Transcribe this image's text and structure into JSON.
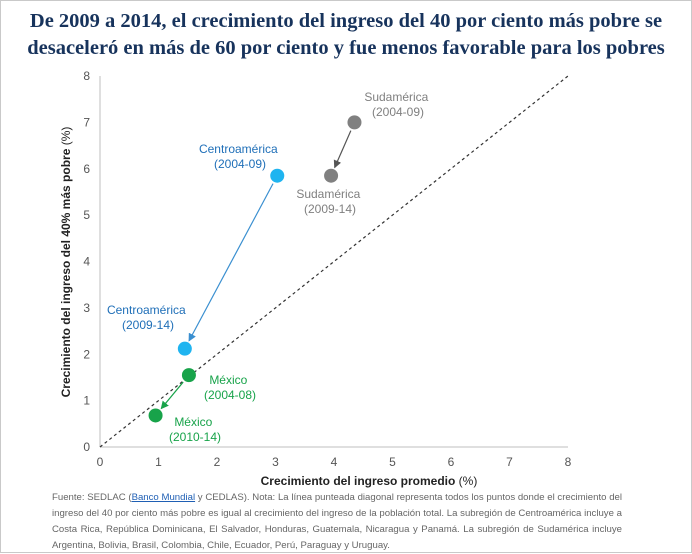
{
  "title": {
    "line1": "De 2009 a 2014, el crecimiento del ingreso del 40 por ciento más pobre se",
    "line2": "desaceleró en más de 60 por ciento y fue menos favorable para los pobres"
  },
  "chart_data": {
    "type": "scatter",
    "xlabel_bold": "Crecimiento del ingreso promedio",
    "xlabel_unit": " (%)",
    "ylabel_bold": "Crecimiento del ingreso del 40% más pobre",
    "ylabel_unit": " (%)",
    "xlim": [
      0,
      8
    ],
    "ylim": [
      0,
      8
    ],
    "x_ticks": [
      "0",
      "1",
      "2",
      "3",
      "4",
      "5",
      "6",
      "7",
      "8"
    ],
    "y_ticks": [
      "0",
      "1",
      "2",
      "3",
      "4",
      "5",
      "6",
      "7",
      "8"
    ],
    "reference_line": "y = x",
    "points": [
      {
        "id": "sud-0409",
        "region": "Sudamérica",
        "period": "(2004-09)",
        "x": 4.35,
        "y": 7.0,
        "color": "#808080"
      },
      {
        "id": "sud-0914",
        "region": "Sudamérica",
        "period": "(2009-14)",
        "x": 3.95,
        "y": 5.85,
        "color": "#808080"
      },
      {
        "id": "cen-0409",
        "region": "Centroamérica",
        "period": "(2004-09)",
        "x": 3.03,
        "y": 5.85,
        "color": "#1fb4f0"
      },
      {
        "id": "cen-0914",
        "region": "Centroamérica",
        "period": "(2009-14)",
        "x": 1.45,
        "y": 2.12,
        "color": "#1fb4f0"
      },
      {
        "id": "mex-0408",
        "region": "México",
        "period": "(2004-08)",
        "x": 1.52,
        "y": 1.55,
        "color": "#18a34a"
      },
      {
        "id": "mex-1014",
        "region": "México",
        "period": "(2010-14)",
        "x": 0.95,
        "y": 0.68,
        "color": "#18a34a"
      }
    ],
    "arrows": [
      {
        "from": "sud-0409",
        "to": "sud-0914",
        "color": "#555555"
      },
      {
        "from": "cen-0409",
        "to": "cen-0914",
        "color": "#3a8fd0"
      },
      {
        "from": "mex-0408",
        "to": "mex-1014",
        "color": "#18a34a"
      }
    ]
  },
  "colors": {
    "sudamerica_label": "#808080",
    "centroamerica_label": "#1f6fb8",
    "mexico_label": "#18a34a"
  },
  "footnote": {
    "part1": "Fuente: SEDLAC (",
    "link": "Banco Mundial",
    "part2": " y CEDLAS). Nota: La línea punteada diagonal representa todos los puntos donde el crecimiento del ingreso del 40 por ciento más pobre es igual al crecimiento del ingreso de la población total. La subregión de Centroamérica incluye a Costa Rica, República Dominicana, El Salvador, Honduras, Guatemala, Nicaragua y Panamá. La subregión de Sudamérica incluye Argentina, Bolivia, Brasil, Colombia, Chile, Ecuador, Perú, Paraguay y Uruguay."
  }
}
